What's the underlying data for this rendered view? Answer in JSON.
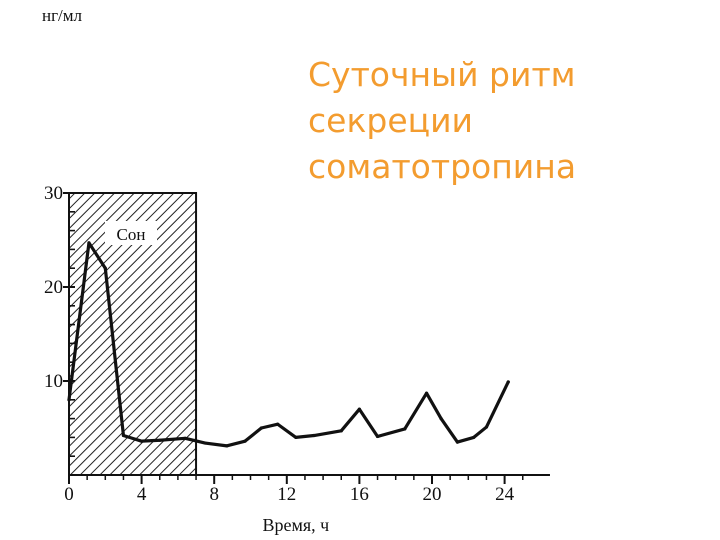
{
  "chart_data": {
    "type": "line",
    "ylabel": "нг/мл",
    "xlabel": "Время, ч",
    "xlim": [
      0,
      26.5
    ],
    "ylim": [
      0,
      30
    ],
    "x_ticks": [
      {
        "value": 0,
        "label": "0"
      },
      {
        "value": 4,
        "label": "4"
      },
      {
        "value": 8,
        "label": "8"
      },
      {
        "value": 12,
        "label": "12"
      },
      {
        "value": 16,
        "label": "16"
      },
      {
        "value": 20,
        "label": "20"
      },
      {
        "value": 24,
        "label": "24"
      }
    ],
    "y_ticks": [
      {
        "value": 10,
        "label": "10"
      },
      {
        "value": 20,
        "label": "20"
      },
      {
        "value": 30,
        "label": "30"
      }
    ],
    "y_minor_ticks": [
      0,
      2,
      4,
      6,
      8,
      10,
      12,
      14,
      16,
      18,
      20,
      22,
      24,
      26,
      28,
      30
    ],
    "shaded_region": {
      "x_start": 0,
      "x_end": 7,
      "label": "Сон"
    },
    "series": [
      {
        "x": [
          0,
          1.1,
          2,
          3,
          4,
          5,
          6.4,
          7.5,
          8.7,
          9.7,
          10.6,
          11.5,
          12.5,
          13.5,
          15,
          16,
          17,
          18.5,
          19.7,
          20.5,
          21.4,
          22.3,
          23,
          24.2
        ],
        "y": [
          8,
          24.7,
          22,
          4.2,
          3.6,
          3.7,
          3.9,
          3.4,
          3.1,
          3.6,
          5.0,
          5.4,
          4.0,
          4.2,
          4.7,
          7.0,
          4.1,
          4.9,
          8.7,
          6.0,
          3.5,
          4.0,
          5.1,
          9.9
        ]
      }
    ]
  },
  "heading": {
    "line1": "Суточный ритм",
    "line2": "секреции",
    "line3": "соматотропина"
  }
}
